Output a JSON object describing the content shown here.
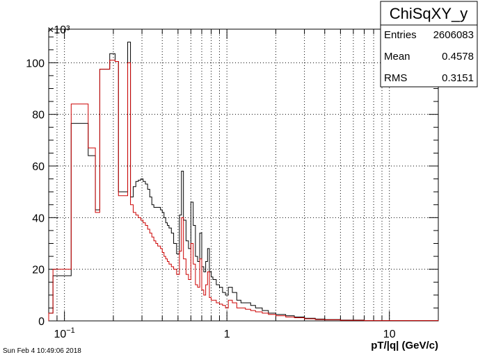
{
  "datestamp": "Sun Feb  4 10:49:06 2018",
  "stats": {
    "title": "ChiSqXY_y",
    "rows": [
      {
        "label": "Entries",
        "value": "2606083"
      },
      {
        "label": "Mean",
        "value": "0.4578"
      },
      {
        "label": "RMS",
        "value": "0.3151"
      }
    ]
  },
  "chart_data": {
    "type": "step",
    "xlabel": "pT/|q| (GeV/c)",
    "ylabel": "",
    "y_multiplier_label": "×10³",
    "x_scale": "log",
    "xlim": [
      0.08,
      20
    ],
    "ylim": [
      0,
      113
    ],
    "grid": true,
    "x_tick_labels": [
      {
        "value": 0.1,
        "base": "10",
        "exp": "−1"
      },
      {
        "value": 1,
        "base": "1",
        "exp": ""
      },
      {
        "value": 10,
        "base": "10",
        "exp": ""
      }
    ],
    "y_ticks": [
      0,
      20,
      40,
      60,
      80,
      100
    ],
    "series": [
      {
        "color": "#000000",
        "points": [
          [
            0.08,
            3
          ],
          [
            0.085,
            17.5
          ],
          [
            0.11,
            76.5
          ],
          [
            0.14,
            64
          ],
          [
            0.155,
            43
          ],
          [
            0.165,
            97.5
          ],
          [
            0.19,
            103.5
          ],
          [
            0.205,
            100.5
          ],
          [
            0.215,
            50
          ],
          [
            0.245,
            108
          ],
          [
            0.255,
            48
          ],
          [
            0.265,
            52
          ],
          [
            0.275,
            54
          ],
          [
            0.285,
            54.5
          ],
          [
            0.295,
            55
          ],
          [
            0.305,
            54
          ],
          [
            0.315,
            53
          ],
          [
            0.325,
            51
          ],
          [
            0.335,
            48
          ],
          [
            0.345,
            45
          ],
          [
            0.355,
            44
          ],
          [
            0.365,
            44
          ],
          [
            0.375,
            44
          ],
          [
            0.39,
            43
          ],
          [
            0.4,
            42
          ],
          [
            0.41,
            40
          ],
          [
            0.42,
            38
          ],
          [
            0.43,
            37
          ],
          [
            0.44,
            36
          ],
          [
            0.455,
            34
          ],
          [
            0.47,
            30
          ],
          [
            0.49,
            26
          ],
          [
            0.51,
            41
          ],
          [
            0.525,
            58
          ],
          [
            0.54,
            39
          ],
          [
            0.56,
            31
          ],
          [
            0.58,
            28
          ],
          [
            0.6,
            46
          ],
          [
            0.62,
            37
          ],
          [
            0.64,
            25
          ],
          [
            0.66,
            23
          ],
          [
            0.68,
            34
          ],
          [
            0.7,
            21
          ],
          [
            0.72,
            19
          ],
          [
            0.74,
            23
          ],
          [
            0.76,
            28
          ],
          [
            0.78,
            19
          ],
          [
            0.8,
            17
          ],
          [
            0.82,
            16
          ],
          [
            0.86,
            14
          ],
          [
            0.9,
            13
          ],
          [
            0.94,
            11
          ],
          [
            0.98,
            10
          ],
          [
            1.02,
            13
          ],
          [
            1.08,
            11
          ],
          [
            1.15,
            8
          ],
          [
            1.22,
            7
          ],
          [
            1.3,
            7
          ],
          [
            1.4,
            6
          ],
          [
            1.5,
            5
          ],
          [
            1.65,
            4
          ],
          [
            1.8,
            3
          ],
          [
            2.0,
            2.5
          ],
          [
            2.3,
            2
          ],
          [
            2.6,
            1.5
          ],
          [
            3.0,
            1
          ],
          [
            3.5,
            0.7
          ],
          [
            4.0,
            0.5
          ],
          [
            5.0,
            0.3
          ],
          [
            7.0,
            0.1
          ],
          [
            20,
            0
          ]
        ]
      },
      {
        "color": "#cc0000",
        "points": [
          [
            0.08,
            3
          ],
          [
            0.085,
            20
          ],
          [
            0.11,
            84
          ],
          [
            0.14,
            67
          ],
          [
            0.155,
            42
          ],
          [
            0.165,
            97.5
          ],
          [
            0.19,
            101
          ],
          [
            0.205,
            100.5
          ],
          [
            0.215,
            48.5
          ],
          [
            0.245,
            100
          ],
          [
            0.255,
            45
          ],
          [
            0.265,
            42
          ],
          [
            0.275,
            41
          ],
          [
            0.285,
            40
          ],
          [
            0.295,
            39
          ],
          [
            0.305,
            38
          ],
          [
            0.315,
            37
          ],
          [
            0.325,
            35.5
          ],
          [
            0.335,
            34
          ],
          [
            0.345,
            32.5
          ],
          [
            0.355,
            31
          ],
          [
            0.365,
            30
          ],
          [
            0.375,
            29
          ],
          [
            0.39,
            28
          ],
          [
            0.4,
            26.5
          ],
          [
            0.41,
            25
          ],
          [
            0.42,
            24
          ],
          [
            0.43,
            23
          ],
          [
            0.44,
            22
          ],
          [
            0.455,
            21
          ],
          [
            0.47,
            20
          ],
          [
            0.49,
            18
          ],
          [
            0.51,
            27
          ],
          [
            0.525,
            40
          ],
          [
            0.54,
            24
          ],
          [
            0.56,
            18
          ],
          [
            0.58,
            16
          ],
          [
            0.6,
            30
          ],
          [
            0.62,
            22
          ],
          [
            0.64,
            14
          ],
          [
            0.66,
            13
          ],
          [
            0.68,
            24
          ],
          [
            0.7,
            12
          ],
          [
            0.72,
            10
          ],
          [
            0.74,
            14
          ],
          [
            0.76,
            19
          ],
          [
            0.78,
            9
          ],
          [
            0.8,
            8
          ],
          [
            0.82,
            8
          ],
          [
            0.86,
            7
          ],
          [
            0.9,
            6.5
          ],
          [
            0.94,
            6
          ],
          [
            0.98,
            5
          ],
          [
            1.02,
            8
          ],
          [
            1.08,
            7
          ],
          [
            1.15,
            5
          ],
          [
            1.22,
            5
          ],
          [
            1.3,
            4.5
          ],
          [
            1.4,
            4
          ],
          [
            1.5,
            3.5
          ],
          [
            1.65,
            3
          ],
          [
            1.8,
            2.5
          ],
          [
            2.0,
            2
          ],
          [
            2.3,
            1.5
          ],
          [
            2.6,
            1.2
          ],
          [
            3.0,
            0.8
          ],
          [
            3.5,
            0.5
          ],
          [
            4.0,
            0.4
          ],
          [
            5.0,
            0.2
          ],
          [
            7.0,
            0.1
          ],
          [
            20,
            0
          ]
        ]
      }
    ]
  }
}
